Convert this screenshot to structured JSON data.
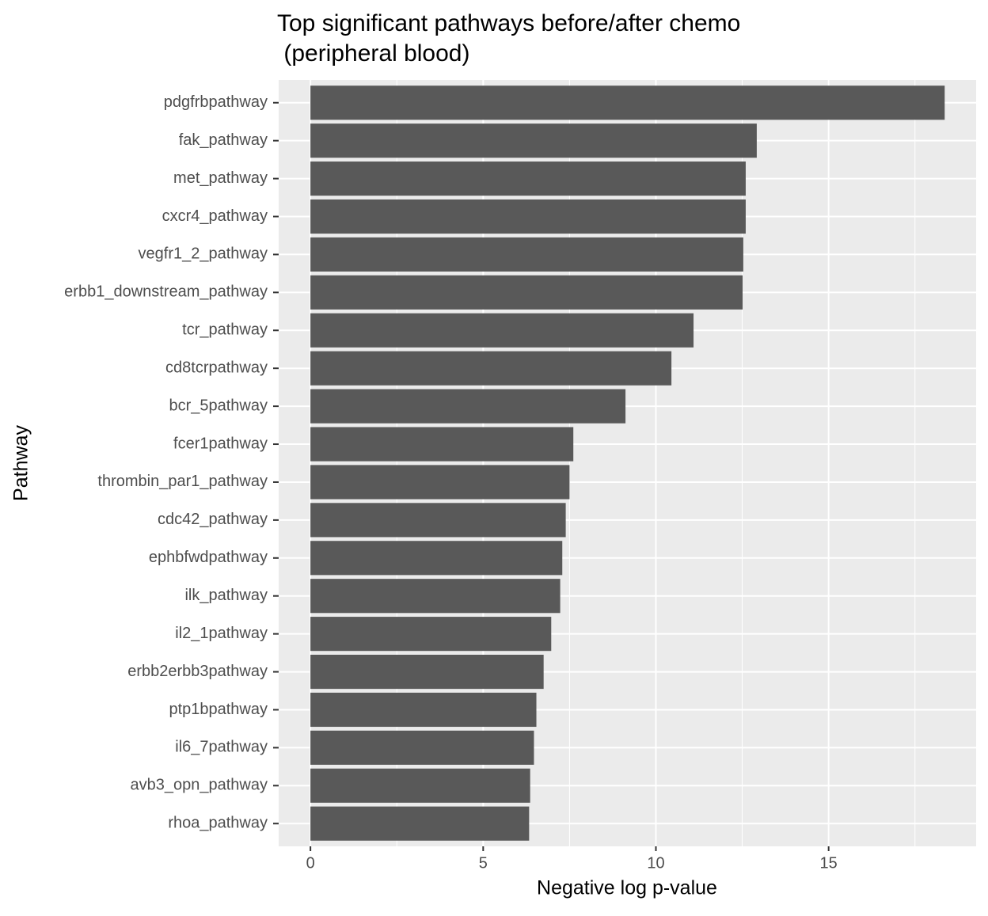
{
  "chart_data": {
    "type": "bar",
    "orientation": "horizontal",
    "title": [
      "Top significant pathways before/after chemo",
      " (peripheral blood)"
    ],
    "x_label": "Negative log p-value",
    "y_label": "Pathway",
    "categories": [
      "pdgfrbpathway",
      "fak_pathway",
      "met_pathway",
      "cxcr4_pathway",
      "vegfr1_2_pathway",
      "erbb1_downstream_pathway",
      "tcr_pathway",
      "cd8tcrpathway",
      "bcr_5pathway",
      "fcer1pathway",
      "thrombin_par1_pathway",
      "cdc42_pathway",
      "ephbfwdpathway",
      "ilk_pathway",
      "il2_1pathway",
      "erbb2erbb3pathway",
      "ptp1bpathway",
      "il6_7pathway",
      "avb3_opn_pathway",
      "rhoa_pathway"
    ],
    "values": [
      18.36,
      12.92,
      12.6,
      12.6,
      12.53,
      12.51,
      11.09,
      10.45,
      9.12,
      7.61,
      7.5,
      7.39,
      7.29,
      7.23,
      6.97,
      6.75,
      6.54,
      6.47,
      6.36,
      6.33
    ],
    "color": "#595959",
    "xlim": [
      -0.92,
      19.27
    ],
    "xticks": [
      0,
      5,
      10,
      15
    ],
    "minor_xticks": [
      2.5,
      7.5,
      12.5,
      17.5
    ],
    "grid": true
  }
}
